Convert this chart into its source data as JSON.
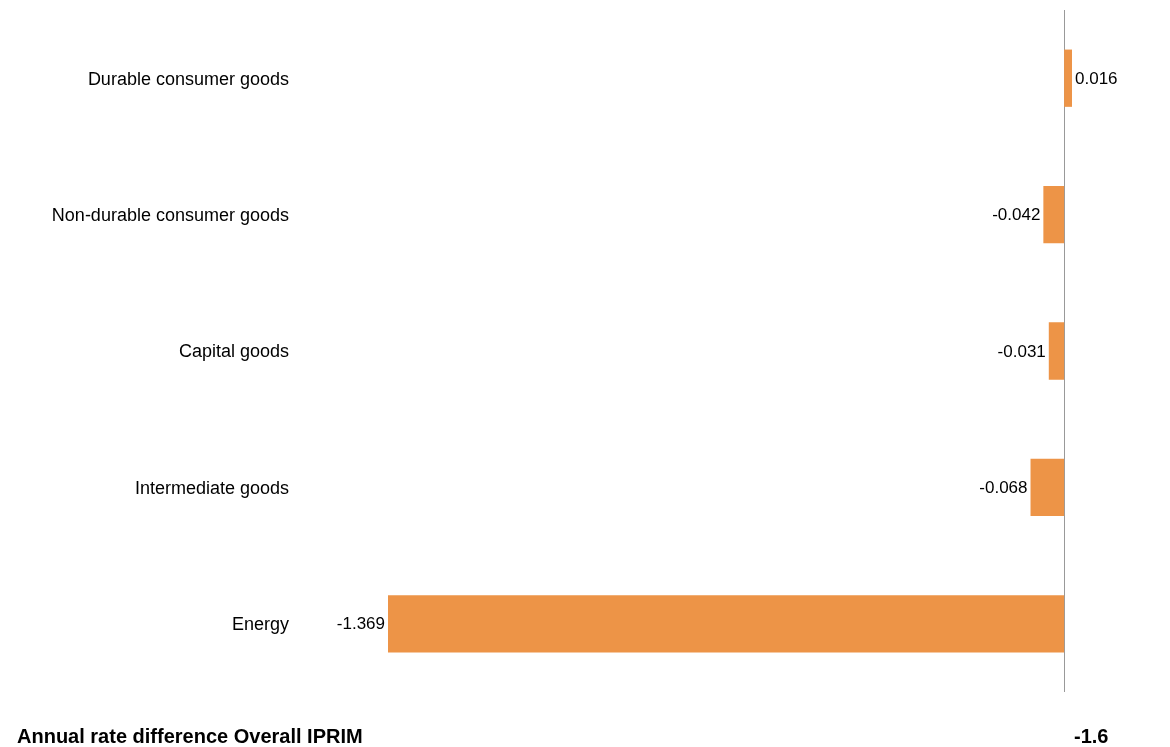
{
  "chart_data": {
    "type": "bar",
    "orientation": "horizontal",
    "categories": [
      "Durable consumer goods",
      "Non-durable consumer goods",
      "Capital goods",
      "Intermediate goods",
      "Energy"
    ],
    "values": [
      0.016,
      -0.042,
      -0.031,
      -0.068,
      -1.369
    ],
    "color": "#ed9447",
    "data_labels": true,
    "annotations": [
      "Annual rate difference Overall IPRIM",
      "-1.6"
    ]
  }
}
